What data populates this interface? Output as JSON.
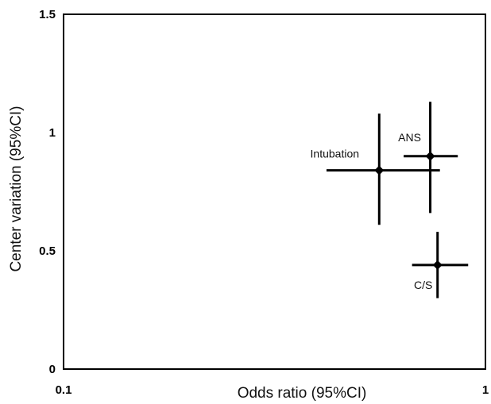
{
  "chart_data": {
    "type": "scatter",
    "title": "",
    "xlabel": "Odds ratio (95%CI)",
    "ylabel": "Center variation (95%CI)",
    "x_scale": "log",
    "xlim": [
      0.1,
      1
    ],
    "ylim": [
      0,
      1.5
    ],
    "x_tick_labels": [
      "0.1",
      "1"
    ],
    "y_tick_labels": [
      "0",
      "0.5",
      "1",
      "1.5"
    ],
    "grid": false,
    "legend": "none",
    "points": [
      {
        "label": "Intubation",
        "x": 0.56,
        "x_low": 0.42,
        "x_high": 0.78,
        "y": 0.84,
        "y_low": 0.61,
        "y_high": 1.08
      },
      {
        "label": "ANS",
        "x": 0.74,
        "x_low": 0.64,
        "x_high": 0.86,
        "y": 0.9,
        "y_low": 0.66,
        "y_high": 1.13
      },
      {
        "label": "C/S",
        "x": 0.77,
        "x_low": 0.67,
        "x_high": 0.91,
        "y": 0.44,
        "y_low": 0.3,
        "y_high": 0.58
      }
    ]
  }
}
